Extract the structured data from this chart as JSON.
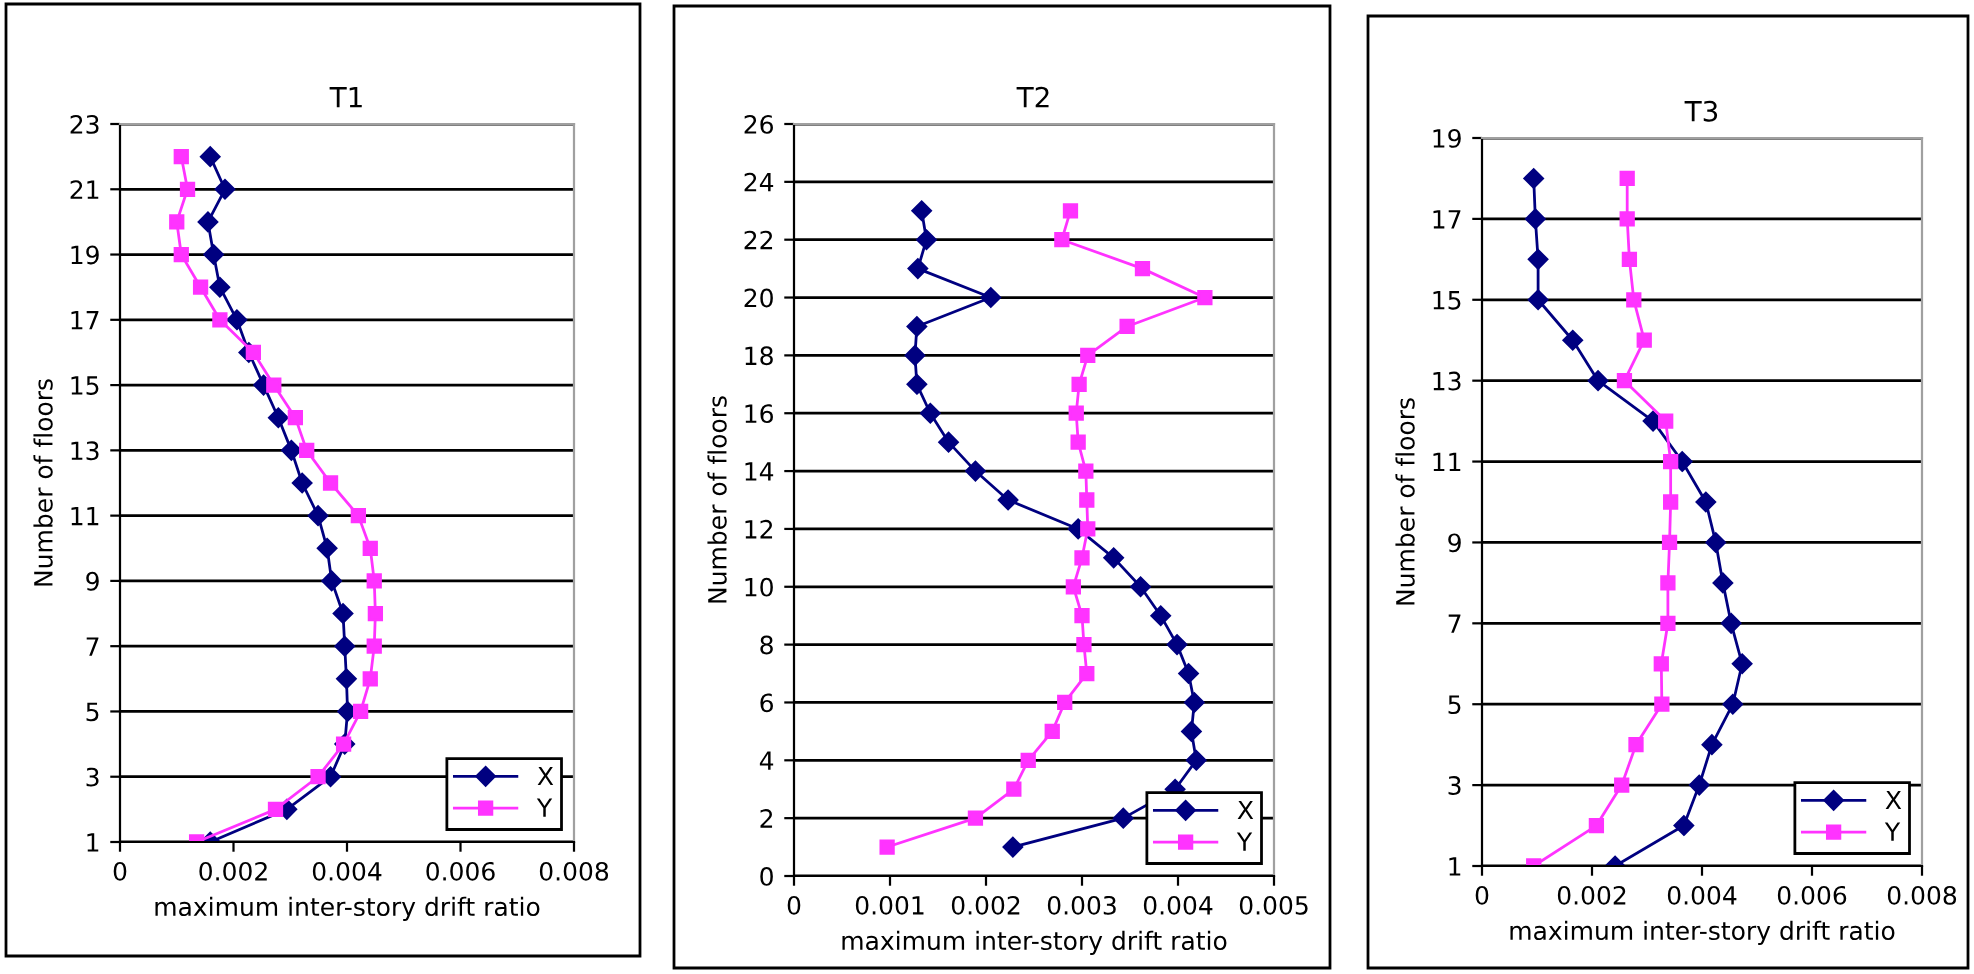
{
  "chart_data": [
    {
      "type": "line",
      "title": "T1",
      "xlabel": "maximum inter-story drift ratio",
      "ylabel": "Number of floors",
      "orientation": "horizontal",
      "x": [
        1,
        2,
        3,
        4,
        5,
        6,
        7,
        8,
        9,
        10,
        11,
        12,
        13,
        14,
        15,
        16,
        17,
        18,
        19,
        20,
        21,
        22
      ],
      "series": [
        {
          "name": "X",
          "color": "#000080",
          "marker": "diamond",
          "values": [
            0.00159,
            0.00294,
            0.00371,
            0.00396,
            0.00401,
            0.00399,
            0.00396,
            0.00393,
            0.00373,
            0.00365,
            0.00349,
            0.00321,
            0.00302,
            0.00279,
            0.00253,
            0.00227,
            0.00206,
            0.00176,
            0.00165,
            0.00155,
            0.00185,
            0.00159
          ]
        },
        {
          "name": "Y",
          "color": "#ff33ff",
          "marker": "square",
          "values": [
            0.00135,
            0.00274,
            0.00349,
            0.00394,
            0.00424,
            0.00441,
            0.00448,
            0.0045,
            0.00448,
            0.00441,
            0.0042,
            0.00371,
            0.00329,
            0.00309,
            0.00271,
            0.00235,
            0.00176,
            0.00142,
            0.00108,
            0.001,
            0.00119,
            0.00108
          ]
        }
      ],
      "xlim": [
        0,
        0.008
      ],
      "xticks": [
        0,
        0.002,
        0.004,
        0.006,
        0.008
      ],
      "ylim": [
        1,
        23
      ],
      "yticks": [
        1,
        3,
        5,
        7,
        9,
        11,
        13,
        15,
        17,
        19,
        21,
        23
      ],
      "grid": "y",
      "legend": "bottom right"
    },
    {
      "type": "line",
      "title": "T2",
      "xlabel": "maximum inter-story drift ratio",
      "ylabel": "Number of floors",
      "orientation": "horizontal",
      "x": [
        1,
        2,
        3,
        4,
        5,
        6,
        7,
        8,
        9,
        10,
        11,
        12,
        13,
        14,
        15,
        16,
        17,
        18,
        19,
        20,
        21,
        22,
        23
      ],
      "series": [
        {
          "name": "X",
          "color": "#000080",
          "marker": "diamond",
          "values": [
            0.00228,
            0.00343,
            0.00397,
            0.00419,
            0.00414,
            0.00417,
            0.00411,
            0.00399,
            0.00382,
            0.00361,
            0.00333,
            0.00296,
            0.00223,
            0.00189,
            0.00161,
            0.00142,
            0.00128,
            0.00126,
            0.00128,
            0.00205,
            0.00129,
            0.00138,
            0.00133
          ]
        },
        {
          "name": "Y",
          "color": "#ff33ff",
          "marker": "square",
          "values": [
            0.00097,
            0.00189,
            0.00229,
            0.00244,
            0.00269,
            0.00282,
            0.00305,
            0.00302,
            0.003,
            0.00291,
            0.003,
            0.00306,
            0.00305,
            0.00304,
            0.00296,
            0.00294,
            0.00297,
            0.00306,
            0.00347,
            0.00428,
            0.00363,
            0.00279,
            0.00288
          ]
        }
      ],
      "xlim": [
        0,
        0.005
      ],
      "xticks": [
        0,
        0.001,
        0.002,
        0.003,
        0.004,
        0.005
      ],
      "ylim": [
        0,
        26
      ],
      "yticks": [
        0,
        2,
        4,
        6,
        8,
        10,
        12,
        14,
        16,
        18,
        20,
        22,
        24,
        26
      ],
      "grid": "y",
      "legend": "bottom right"
    },
    {
      "type": "line",
      "title": "T3",
      "xlabel": "maximum inter-story drift ratio",
      "ylabel": "Number of floors",
      "orientation": "horizontal",
      "x": [
        1,
        2,
        3,
        4,
        5,
        6,
        7,
        8,
        9,
        10,
        11,
        12,
        13,
        14,
        15,
        16,
        17,
        18
      ],
      "series": [
        {
          "name": "X",
          "color": "#000080",
          "marker": "diamond",
          "values": [
            0.00242,
            0.00367,
            0.00395,
            0.00418,
            0.00456,
            0.00473,
            0.00453,
            0.00438,
            0.00425,
            0.00407,
            0.00364,
            0.00311,
            0.00211,
            0.00165,
            0.00102,
            0.00102,
            0.00097,
            0.00094
          ]
        },
        {
          "name": "Y",
          "color": "#ff33ff",
          "marker": "square",
          "values": [
            0.00094,
            0.00208,
            0.00254,
            0.0028,
            0.00327,
            0.00326,
            0.00338,
            0.00338,
            0.00341,
            0.00343,
            0.00343,
            0.00334,
            0.00259,
            0.00295,
            0.00276,
            0.00268,
            0.00264,
            0.00264
          ]
        }
      ],
      "xlim": [
        0,
        0.008
      ],
      "xticks": [
        0,
        0.002,
        0.004,
        0.006,
        0.008
      ],
      "ylim": [
        1,
        19
      ],
      "yticks": [
        1,
        3,
        5,
        7,
        9,
        11,
        13,
        15,
        17,
        19
      ],
      "grid": "y",
      "legend": "bottom right"
    }
  ]
}
